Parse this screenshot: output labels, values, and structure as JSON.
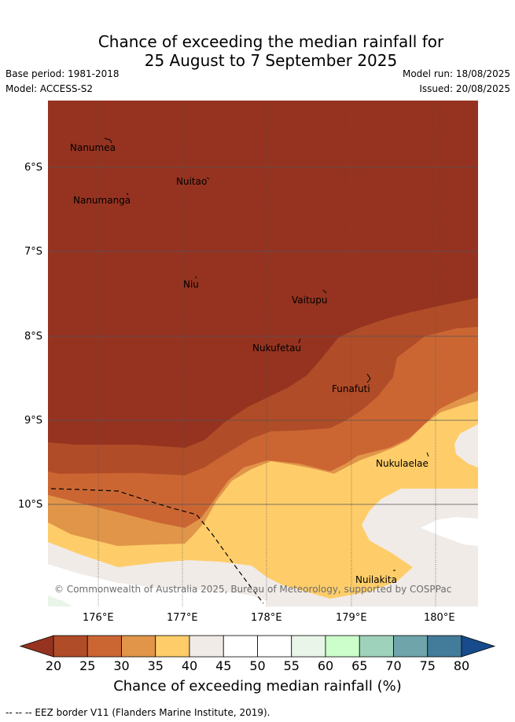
{
  "header": {
    "title_line1": "Chance of exceeding the median rainfall for",
    "title_line2": "25 August to 7 September 2025",
    "base_period": "Base period: 1981-2018",
    "model": "Model: ACCESS-S2",
    "model_run": "Model run: 18/08/2025",
    "issued": "Issued: 20/08/2025"
  },
  "map": {
    "lat_labels": [
      "6°S",
      "7°S",
      "8°S",
      "9°S",
      "10°S"
    ],
    "lon_labels": [
      "176°E",
      "177°E",
      "178°E",
      "179°E",
      "180°E"
    ],
    "islands": [
      {
        "name": "Nanumea"
      },
      {
        "name": "Nuitao"
      },
      {
        "name": "Nanumanga"
      },
      {
        "name": "Niu"
      },
      {
        "name": "Vaitupu"
      },
      {
        "name": "Nukufetau"
      },
      {
        "name": "Funafuti"
      },
      {
        "name": "Nukulaelae"
      },
      {
        "name": "Nuilakita"
      }
    ],
    "copyright": "© Commonwealth of Australia 2025, Bureau of Meteorology, supported by COSPPac",
    "colors": {
      "below20": "#953320",
      "c20_25": "#b04c27",
      "c25_30": "#cb6633",
      "c30_35": "#e19549",
      "c35_40": "#fecd6a",
      "c40_45": "#f0ebe7",
      "c45_55": "#ffffff",
      "c55_60": "#e9f5e9",
      "c60_65": "#ccfecc"
    }
  },
  "colorbar": {
    "title": "Chance of exceeding median rainfall (%)",
    "ticks": [
      "20",
      "25",
      "30",
      "35",
      "40",
      "45",
      "50",
      "55",
      "60",
      "65",
      "70",
      "75",
      "80"
    ],
    "colors": [
      "#b04c27",
      "#cb6633",
      "#e19549",
      "#fecd6a",
      "#f0ebe7",
      "#ffffff",
      "#ffffff",
      "#e9f5e9",
      "#ccfecc",
      "#9fd2bb",
      "#6fa5aa",
      "#437b9b"
    ],
    "low_extend_color": "#953320",
    "high_extend_color": "#174b8c"
  },
  "footer": {
    "eez_note": "--  --  -- EEZ border V11 (Flanders Marine Institute, 2019)."
  }
}
